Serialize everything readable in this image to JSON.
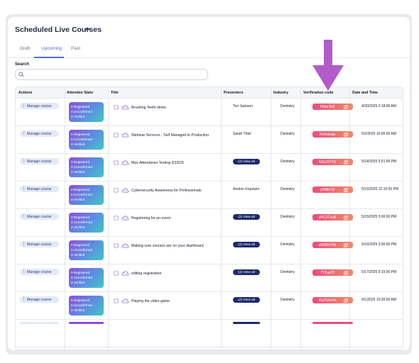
{
  "section": {
    "title": "Scheduled Live Courses"
  },
  "tabs": [
    {
      "label": "Draft"
    },
    {
      "label": "Upcoming"
    },
    {
      "label": "Past"
    }
  ],
  "search": {
    "label": "Search",
    "placeholder": "",
    "value": ""
  },
  "columns": [
    "Actions",
    "Attendee Stats",
    "Title",
    "Presenters",
    "Industry",
    "Verification code",
    "Date and Time"
  ],
  "rows": [
    {
      "action": "Manage course",
      "stats": [
        "0 Registered",
        "0 Unconfirmed",
        "0 Verified"
      ],
      "title": "Brushing Teeth demo",
      "presenter": "Tori Jackson",
      "industry": "Dentistry",
      "code": "P5ba7ki2",
      "date": "4/30/2025 2:18:00 AM"
    },
    {
      "action": "Manage course",
      "stats": [
        "0 Registered",
        "0 Unconfirmed",
        "0 Verified"
      ],
      "title": "Webinar Services - Self Managed to Production",
      "presenter": "Sarah Thiel",
      "industry": "Dentistry",
      "code": "NOhdwqs",
      "date": "5/2/2025 10:00:00 AM"
    },
    {
      "action": "Manage course",
      "stats": [
        "3 Registered",
        "0 Unconfirmed",
        "0 Verified"
      ],
      "title": "Max Attendance Testing 3/23/25",
      "presenter": "(2) View all",
      "industry": "Dentistry",
      "code": "NSU7t7YK",
      "date": "5/14/2025 5:51:00 PM"
    },
    {
      "action": "Manage course",
      "stats": [
        "0 Registered",
        "0 Unconfirmed",
        "0 Verified"
      ],
      "title": "Cybersecurity Awareness for Professionals",
      "presenter": "Andoni Urquiano",
      "industry": "Dentistry",
      "code": "yHd8cYjf",
      "date": "5/15/2025 12:15:00 PM"
    },
    {
      "action": "Manage course",
      "stats": [
        "0 Registered",
        "0 Unconfirmed",
        "0 Verified"
      ],
      "title": "Registering for an event",
      "presenter": "(2) View all",
      "industry": "Dentistry",
      "code": "yRC2T2uB",
      "date": "5/15/2025 3:00:00 PM"
    },
    {
      "action": "Manage course",
      "stats": [
        "0 Registered",
        "0 Unconfirmed",
        "0 Verified"
      ],
      "title": "Making sure courses are on your dashboard",
      "presenter": "(2) View all",
      "industry": "Dentistry",
      "code": "sW9DUVlb",
      "date": "5/16/2025 3:00:00 PM"
    },
    {
      "action": "Manage course",
      "stats": [
        "0 Registered",
        "0 Unconfirmed",
        "0 Verified"
      ],
      "title": "editing registration",
      "presenter": "(2) View all",
      "industry": "Dentistry",
      "code": "7TZuyOf",
      "date": "5/17/2025 5:15:00 PM"
    },
    {
      "action": "Manage course",
      "stats": [
        "5 Registered",
        "5 Unconfirmed",
        "0 Verified"
      ],
      "title": "Playing the video game",
      "presenter": "(2) View all",
      "industry": "Dentistry",
      "code": "SQXVbn2n",
      "date": "6/1/2025 10:30:00 AM"
    }
  ],
  "colors": {
    "accent": "#4b6bd6",
    "annotation_arrow": "#b15cc8",
    "code_badge": "#e94d7b",
    "view_all": "#1e2a6b"
  }
}
